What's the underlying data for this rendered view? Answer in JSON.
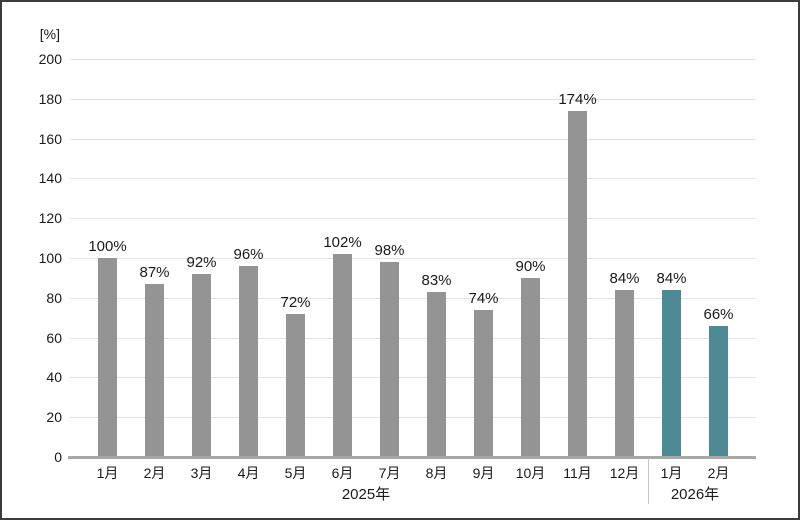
{
  "chart_data": {
    "type": "bar",
    "title": "",
    "unit_label": "[%]",
    "value_suffix": "%",
    "ylim": [
      0,
      200
    ],
    "y_ticks": [
      0,
      20,
      40,
      60,
      80,
      100,
      120,
      140,
      160,
      180,
      200
    ],
    "grid": "horizontal",
    "legend": "none",
    "groups": [
      {
        "year_label": "2025年",
        "bar_color": "#949494",
        "categories": [
          "1月",
          "2月",
          "3月",
          "4月",
          "5月",
          "6月",
          "7月",
          "8月",
          "9月",
          "10月",
          "11月",
          "12月"
        ],
        "values": [
          100,
          87,
          92,
          96,
          72,
          102,
          98,
          83,
          74,
          90,
          174,
          84
        ]
      },
      {
        "year_label": "2026年",
        "bar_color": "#4d8a96",
        "categories": [
          "1月",
          "2月"
        ],
        "values": [
          84,
          66
        ]
      }
    ],
    "colors": {
      "bar_2025": "#949494",
      "bar_2026": "#4d8a96",
      "gridline": "#e2e2e2",
      "axis_line": "#a8a8a8",
      "divider": "#c9c9c9",
      "text": "#1a1a1a",
      "frame_border": "#3c3c3c"
    }
  }
}
